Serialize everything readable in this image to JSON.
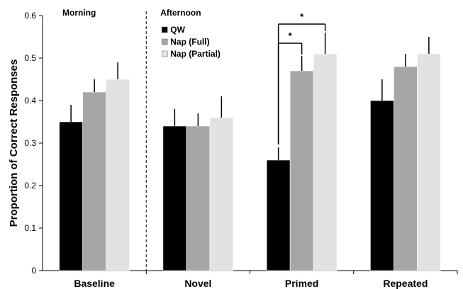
{
  "chart_data": {
    "type": "bar",
    "ylabel": "Proportion of Correct Responses",
    "ylim": [
      0,
      0.6
    ],
    "yticks": [
      "0",
      "0.1",
      "0.2",
      "0.3",
      "0.4",
      "0.5",
      "0.6"
    ],
    "categories": [
      "Baseline",
      "Novel",
      "Primed",
      "Repeated"
    ],
    "series": [
      {
        "name": "QW",
        "values": [
          0.35,
          0.34,
          0.26,
          0.4
        ],
        "errors": [
          0.04,
          0.04,
          0.03,
          0.05
        ],
        "color": "#000000"
      },
      {
        "name": "Nap (Full)",
        "values": [
          0.42,
          0.34,
          0.47,
          0.48
        ],
        "errors": [
          0.03,
          0.03,
          0.035,
          0.03
        ],
        "color": "#a6a6a6"
      },
      {
        "name": "Nap (Partial)",
        "values": [
          0.45,
          0.36,
          0.51,
          0.51
        ],
        "errors": [
          0.04,
          0.05,
          0.05,
          0.04
        ],
        "color": "#e2e2e2"
      }
    ],
    "periods": [
      "Morning",
      "Afternoon"
    ],
    "significance": [
      {
        "category": "Primed",
        "from": "QW",
        "to": "Nap (Full)",
        "label": "*"
      },
      {
        "category": "Primed",
        "from": "QW",
        "to": "Nap (Partial)",
        "label": "*"
      }
    ],
    "legend_position": "top-left of Afternoon section",
    "grid": false
  }
}
